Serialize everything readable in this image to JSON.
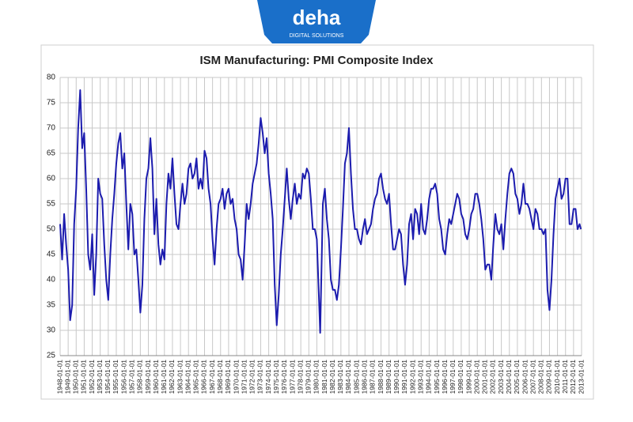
{
  "logo": {
    "name": "deha",
    "tagline": "DIGITAL SOLUTIONS"
  },
  "chart_data": {
    "type": "line",
    "title": "ISM Manufacturing: PMI Composite Index",
    "color": "#1c1cae",
    "grid": true,
    "xlim": [
      "1948-01-01",
      "2013-01-01"
    ],
    "ylim": [
      25,
      80
    ],
    "yticks": [
      25,
      30,
      35,
      40,
      45,
      50,
      55,
      60,
      65,
      70,
      75,
      80
    ],
    "xticks": [
      "1948-01-01",
      "1949-01-01",
      "1950-01-01",
      "1951-01-01",
      "1952-01-01",
      "1953-01-01",
      "1954-01-01",
      "1955-01-01",
      "1956-01-01",
      "1957-01-01",
      "1958-01-01",
      "1959-01-01",
      "1960-01-01",
      "1961-01-01",
      "1962-01-01",
      "1963-01-01",
      "1964-01-01",
      "1965-01-01",
      "1966-01-01",
      "1967-01-01",
      "1968-01-01",
      "1969-01-01",
      "1970-01-01",
      "1971-01-01",
      "1972-01-01",
      "1973-01-01",
      "1974-01-01",
      "1975-01-01",
      "1976-01-01",
      "1977-01-01",
      "1978-01-01",
      "1979-01-01",
      "1980-01-01",
      "1981-01-01",
      "1982-01-01",
      "1983-01-01",
      "1984-01-01",
      "1985-01-01",
      "1986-01-01",
      "1987-01-01",
      "1988-01-01",
      "1989-01-01",
      "1990-01-01",
      "1991-01-01",
      "1992-01-01",
      "1993-01-01",
      "1994-01-01",
      "1995-01-01",
      "1996-01-01",
      "1997-01-01",
      "1998-01-01",
      "1999-01-01",
      "2000-01-01",
      "2001-01-01",
      "2002-01-01",
      "2003-01-01",
      "2004-01-01",
      "2005-01-01",
      "2006-01-01",
      "2007-01-01",
      "2008-01-01",
      "2009-01-01",
      "2010-01-01",
      "2011-01-01",
      "2012-01-01",
      "2013-01-01"
    ],
    "x": [
      "1948-01-01",
      "1948-04-01",
      "1948-07-01",
      "1948-10-01",
      "1949-01-01",
      "1949-04-01",
      "1949-07-01",
      "1949-10-01",
      "1950-01-01",
      "1950-04-01",
      "1950-07-01",
      "1950-10-01",
      "1951-01-01",
      "1951-04-01",
      "1951-07-01",
      "1951-10-01",
      "1952-01-01",
      "1952-04-01",
      "1952-07-01",
      "1952-10-01",
      "1953-01-01",
      "1953-04-01",
      "1953-07-01",
      "1953-10-01",
      "1954-01-01",
      "1954-04-01",
      "1954-07-01",
      "1954-10-01",
      "1955-01-01",
      "1955-04-01",
      "1955-07-01",
      "1955-10-01",
      "1956-01-01",
      "1956-04-01",
      "1956-07-01",
      "1956-10-01",
      "1957-01-01",
      "1957-04-01",
      "1957-07-01",
      "1957-10-01",
      "1958-01-01",
      "1958-04-01",
      "1958-07-01",
      "1958-10-01",
      "1959-01-01",
      "1959-04-01",
      "1959-07-01",
      "1959-10-01",
      "1960-01-01",
      "1960-04-01",
      "1960-07-01",
      "1960-10-01",
      "1961-01-01",
      "1961-04-01",
      "1961-07-01",
      "1961-10-01",
      "1962-01-01",
      "1962-04-01",
      "1962-07-01",
      "1962-10-01",
      "1963-01-01",
      "1963-04-01",
      "1963-07-01",
      "1963-10-01",
      "1964-01-01",
      "1964-04-01",
      "1964-07-01",
      "1964-10-01",
      "1965-01-01",
      "1965-04-01",
      "1965-07-01",
      "1965-10-01",
      "1966-01-01",
      "1966-04-01",
      "1966-07-01",
      "1966-10-01",
      "1967-01-01",
      "1967-04-01",
      "1967-07-01",
      "1967-10-01",
      "1968-01-01",
      "1968-04-01",
      "1968-07-01",
      "1968-10-01",
      "1969-01-01",
      "1969-04-01",
      "1969-07-01",
      "1969-10-01",
      "1970-01-01",
      "1970-04-01",
      "1970-07-01",
      "1970-10-01",
      "1971-01-01",
      "1971-04-01",
      "1971-07-01",
      "1971-10-01",
      "1972-01-01",
      "1972-04-01",
      "1972-07-01",
      "1972-10-01",
      "1973-01-01",
      "1973-04-01",
      "1973-07-01",
      "1973-10-01",
      "1974-01-01",
      "1974-04-01",
      "1974-07-01",
      "1974-10-01",
      "1975-01-01",
      "1975-04-01",
      "1975-07-01",
      "1975-10-01",
      "1976-01-01",
      "1976-04-01",
      "1976-07-01",
      "1976-10-01",
      "1977-01-01",
      "1977-04-01",
      "1977-07-01",
      "1977-10-01",
      "1978-01-01",
      "1978-04-01",
      "1978-07-01",
      "1978-10-01",
      "1979-01-01",
      "1979-04-01",
      "1979-07-01",
      "1979-10-01",
      "1980-01-01",
      "1980-04-01",
      "1980-06-01",
      "1980-10-01",
      "1981-01-01",
      "1981-04-01",
      "1981-07-01",
      "1981-10-01",
      "1982-01-01",
      "1982-04-01",
      "1982-07-01",
      "1982-10-01",
      "1983-01-01",
      "1983-04-01",
      "1983-07-01",
      "1983-10-01",
      "1984-01-01",
      "1984-04-01",
      "1984-07-01",
      "1984-10-01",
      "1985-01-01",
      "1985-04-01",
      "1985-07-01",
      "1985-10-01",
      "1986-01-01",
      "1986-04-01",
      "1986-07-01",
      "1986-10-01",
      "1987-01-01",
      "1987-04-01",
      "1987-07-01",
      "1987-10-01",
      "1988-01-01",
      "1988-04-01",
      "1988-07-01",
      "1988-10-01",
      "1989-01-01",
      "1989-04-01",
      "1989-07-01",
      "1989-10-01",
      "1990-01-01",
      "1990-04-01",
      "1990-07-01",
      "1990-10-01",
      "1991-01-01",
      "1991-04-01",
      "1991-07-01",
      "1991-10-01",
      "1992-01-01",
      "1992-04-01",
      "1992-07-01",
      "1992-10-01",
      "1993-01-01",
      "1993-04-01",
      "1993-07-01",
      "1993-10-01",
      "1994-01-01",
      "1994-04-01",
      "1994-07-01",
      "1994-10-01",
      "1995-01-01",
      "1995-04-01",
      "1995-07-01",
      "1995-10-01",
      "1996-01-01",
      "1996-04-01",
      "1996-07-01",
      "1996-10-01",
      "1997-01-01",
      "1997-04-01",
      "1997-07-01",
      "1997-10-01",
      "1998-01-01",
      "1998-04-01",
      "1998-07-01",
      "1998-10-01",
      "1999-01-01",
      "1999-04-01",
      "1999-07-01",
      "1999-10-01",
      "2000-01-01",
      "2000-04-01",
      "2000-07-01",
      "2000-10-01",
      "2001-01-01",
      "2001-04-01",
      "2001-07-01",
      "2001-10-01",
      "2002-01-01",
      "2002-04-01",
      "2002-07-01",
      "2002-10-01",
      "2003-01-01",
      "2003-04-01",
      "2003-07-01",
      "2003-10-01",
      "2004-01-01",
      "2004-04-01",
      "2004-07-01",
      "2004-10-01",
      "2005-01-01",
      "2005-04-01",
      "2005-07-01",
      "2005-10-01",
      "2006-01-01",
      "2006-04-01",
      "2006-07-01",
      "2006-10-01",
      "2007-01-01",
      "2007-04-01",
      "2007-07-01",
      "2007-10-01",
      "2008-01-01",
      "2008-04-01",
      "2008-07-01",
      "2008-10-01",
      "2009-01-01",
      "2009-04-01",
      "2009-07-01",
      "2009-10-01",
      "2010-01-01",
      "2010-04-01",
      "2010-07-01",
      "2010-10-01",
      "2011-01-01",
      "2011-04-01",
      "2011-07-01",
      "2011-10-01",
      "2012-01-01",
      "2012-04-01",
      "2012-07-01",
      "2012-10-01",
      "2012-12-01"
    ],
    "values": [
      51,
      44,
      53,
      47,
      42,
      32,
      35,
      51,
      58,
      70,
      77.5,
      66,
      69,
      58,
      45,
      42,
      49,
      37,
      45,
      60,
      57,
      56,
      47,
      40,
      36,
      45,
      52,
      57,
      63,
      67,
      69,
      62,
      65,
      55,
      46,
      55,
      53,
      45,
      46,
      40,
      33.5,
      39,
      52,
      60,
      62,
      68,
      62,
      49,
      56,
      47,
      43,
      46,
      44,
      55,
      61,
      58,
      64,
      57,
      51,
      50,
      55,
      59,
      55,
      57,
      62,
      63,
      60,
      61,
      64,
      58,
      60,
      58,
      65.5,
      64,
      58,
      55,
      48,
      43,
      50,
      55,
      56,
      58,
      54,
      57,
      58,
      55,
      56,
      52,
      50,
      45,
      44,
      40,
      47,
      55,
      52,
      55,
      59,
      61,
      63,
      67,
      72,
      69,
      65,
      68,
      61,
      57,
      52,
      39,
      31,
      37,
      45,
      50,
      56,
      62,
      56,
      52,
      56,
      59,
      55,
      57,
      56,
      61,
      60,
      62,
      61,
      56,
      50,
      50,
      48,
      37,
      29.5,
      55,
      58,
      52,
      48,
      40,
      38,
      38,
      36,
      39,
      46,
      54,
      63,
      65,
      70,
      61,
      54,
      50,
      50,
      48,
      47,
      50,
      52,
      49,
      50,
      51,
      54,
      56,
      57,
      60,
      61,
      58,
      56,
      55,
      57,
      51,
      46,
      46,
      48,
      50,
      49,
      43,
      39,
      43,
      51,
      53,
      48,
      54,
      53,
      49,
      55,
      50,
      49,
      52,
      56,
      58,
      58,
      59,
      57,
      52,
      50,
      46,
      45,
      49,
      52,
      51,
      53,
      55,
      57,
      56,
      53,
      52,
      49,
      48,
      50,
      53,
      54,
      57,
      57,
      55,
      52,
      48,
      42,
      43,
      43,
      40,
      47,
      53,
      50,
      49,
      51,
      46,
      52,
      57,
      61,
      62,
      61,
      57,
      56,
      53,
      55,
      59,
      55,
      55,
      54,
      52,
      50,
      54,
      53,
      50,
      50,
      49,
      50,
      38,
      34,
      40,
      49,
      56,
      58,
      60,
      56,
      57,
      60,
      60,
      51,
      51,
      54,
      54,
      50,
      51,
      50
    ]
  }
}
